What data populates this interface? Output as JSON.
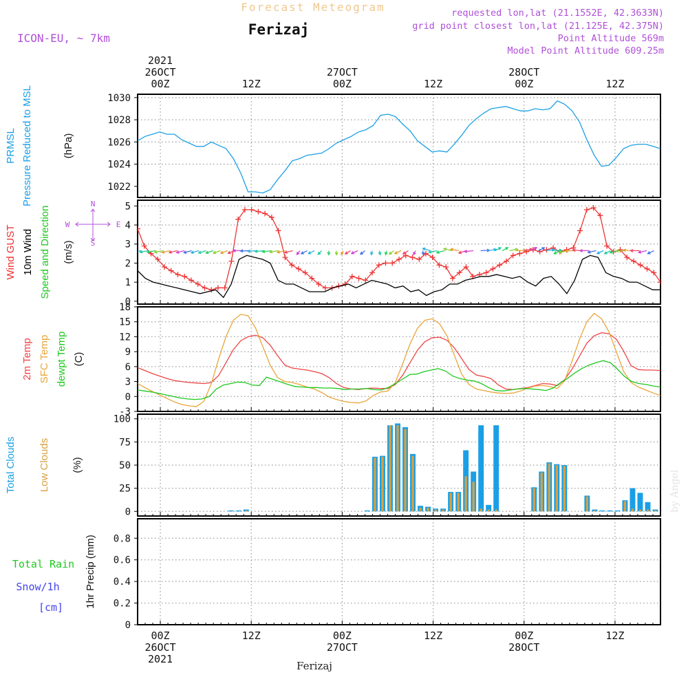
{
  "header": {
    "title": "Forecast Meteogram",
    "station": "Ferizaj",
    "model": "ICON-EU, ~ 7km",
    "requested": "requested lon,lat (21.1552E, 42.3633N)",
    "grid_point": "grid point closest lon,lat (21.125E, 42.375N)",
    "point_alt": "Point Altitude 569m",
    "model_alt": "Model Point Altitude 609.25m",
    "footer_station": "Ferizaj",
    "watermark": "by Angel"
  },
  "colors": {
    "pressure": "#1a9fe6",
    "gust": "#ee3333",
    "wind": "#000000",
    "temp2m": "#ee4444",
    "sfc": "#e8a53a",
    "dew": "#1ec81e",
    "total_clouds": "#1a9fe6",
    "low_clouds": "#d8a040",
    "rain": "#1ec81e",
    "snow": "#4444ee",
    "purple": "#b050d8"
  },
  "chart_data": {
    "type": "line",
    "x_axis": {
      "unit": "hours from 2021-10-25 21Z",
      "range": [
        0,
        69
      ],
      "top_ticks": [
        {
          "x": 3,
          "labels": [
            "2021",
            "26OCT",
            "00Z"
          ]
        },
        {
          "x": 15,
          "labels": [
            "12Z"
          ]
        },
        {
          "x": 27,
          "labels": [
            "27OCT",
            "00Z"
          ]
        },
        {
          "x": 39,
          "labels": [
            "12Z"
          ]
        },
        {
          "x": 51,
          "labels": [
            "28OCT",
            "00Z"
          ]
        },
        {
          "x": 63,
          "labels": [
            "12Z"
          ]
        }
      ],
      "bottom_ticks": [
        {
          "x": 3,
          "labels": [
            "00Z",
            "26OCT",
            "2021"
          ]
        },
        {
          "x": 15,
          "labels": [
            "12Z"
          ]
        },
        {
          "x": 27,
          "labels": [
            "00Z",
            "27OCT"
          ]
        },
        {
          "x": 39,
          "labels": [
            "12Z"
          ]
        },
        {
          "x": 51,
          "labels": [
            "00Z",
            "28OCT"
          ]
        },
        {
          "x": 63,
          "labels": [
            "12Z"
          ]
        }
      ]
    },
    "panels": [
      {
        "id": "pressure",
        "ylabels": [
          {
            "text": "PRMSL",
            "color": "pressure"
          },
          {
            "text": "Pressure Reduced to MSL",
            "color": "pressure"
          }
        ],
        "unit": "(hPa)",
        "ylim": [
          1021,
          1030.3
        ],
        "yticks": [
          1022,
          1024,
          1026,
          1028,
          1030
        ],
        "series": [
          {
            "name": "PRMSL",
            "color": "pressure",
            "values": [
              1026.1,
              1026.5,
              1026.7,
              1026.9,
              1026.7,
              1026.7,
              1026.2,
              1025.9,
              1025.6,
              1025.6,
              1026.0,
              1025.7,
              1025.4,
              1024.5,
              1023.2,
              1021.5,
              1021.5,
              1021.4,
              1021.7,
              1022.6,
              1023.4,
              1024.3,
              1024.5,
              1024.8,
              1024.9,
              1025.0,
              1025.4,
              1025.9,
              1026.2,
              1026.5,
              1026.9,
              1027.1,
              1027.5,
              1028.4,
              1028.5,
              1028.3,
              1027.6,
              1027.0,
              1026.1,
              1025.6,
              1025.1,
              1025.2,
              1025.1,
              1025.8,
              1026.6,
              1027.5,
              1028.1,
              1028.6,
              1029.0,
              1029.1,
              1029.2,
              1029.0,
              1028.8,
              1028.8,
              1029.0,
              1028.9,
              1029.0,
              1029.7,
              1029.4,
              1028.8,
              1027.8,
              1026.2,
              1024.8,
              1023.8,
              1023.9,
              1024.6,
              1025.4,
              1025.7,
              1025.8,
              1025.8,
              1025.6,
              1025.4
            ]
          }
        ]
      },
      {
        "id": "wind",
        "ylabels": [
          {
            "text": "Wind GUST",
            "color": "gust"
          },
          {
            "text": "10m Wind",
            "color": "wind"
          },
          {
            "text": "Speed and Direction",
            "color": "dew"
          }
        ],
        "unit": "(m/s)",
        "ylim": [
          -0.15,
          5.3
        ],
        "yticks": [
          0,
          1,
          2,
          3,
          4,
          5
        ],
        "compass": {
          "n": "N",
          "s": "S",
          "e": "E",
          "w": "W"
        },
        "series": [
          {
            "name": "Wind GUST",
            "color": "gust",
            "marker": "plus",
            "values": [
              3.8,
              2.9,
              2.5,
              2.2,
              1.8,
              1.6,
              1.4,
              1.3,
              1.1,
              0.9,
              0.7,
              0.6,
              0.7,
              0.7,
              2.1,
              4.3,
              4.8,
              4.8,
              4.7,
              4.6,
              4.4,
              3.7,
              2.3,
              1.9,
              1.7,
              1.5,
              1.2,
              0.9,
              0.7,
              0.7,
              0.8,
              0.9,
              1.3,
              1.2,
              1.1,
              1.5,
              1.9,
              2.0,
              2.0,
              2.2,
              2.4,
              2.3,
              2.2,
              2.5,
              2.3,
              1.9,
              1.8,
              1.2,
              1.5,
              1.8,
              1.3,
              1.4,
              1.5,
              1.7,
              1.9,
              2.1,
              2.4,
              2.5,
              2.6,
              2.7,
              2.6,
              2.7,
              2.8,
              2.6,
              2.7,
              2.8,
              3.7,
              4.8,
              4.9,
              4.5,
              2.9,
              2.6,
              2.7,
              2.3,
              2.1,
              1.9,
              1.7,
              1.5,
              1.0
            ]
          },
          {
            "name": "10m Wind",
            "color": "wind",
            "values": [
              1.6,
              1.2,
              1.0,
              0.9,
              0.8,
              0.7,
              0.6,
              0.5,
              0.4,
              0.5,
              0.6,
              0.2,
              0.9,
              2.2,
              2.4,
              2.3,
              2.2,
              2.0,
              1.1,
              0.9,
              0.9,
              0.7,
              0.5,
              0.5,
              0.5,
              0.7,
              0.8,
              0.9,
              0.7,
              0.9,
              1.1,
              1.0,
              0.9,
              0.7,
              0.8,
              0.5,
              0.6,
              0.3,
              0.5,
              0.6,
              0.9,
              0.9,
              1.1,
              1.2,
              1.3,
              1.3,
              1.4,
              1.3,
              1.2,
              1.3,
              1.0,
              0.8,
              1.2,
              1.3,
              0.9,
              0.4,
              1.1,
              2.2,
              2.4,
              2.3,
              1.5,
              1.3,
              1.2,
              1.0,
              1.0,
              0.8,
              0.6,
              0.6
            ]
          }
        ]
      },
      {
        "id": "temp",
        "ylabels": [
          {
            "text": "2m Temp",
            "color": "temp2m"
          },
          {
            "text": "SFC Temp",
            "color": "sfc"
          },
          {
            "text": "dewpt Temp",
            "color": "dew"
          }
        ],
        "unit": "(C)",
        "ylim": [
          -3,
          18
        ],
        "yticks": [
          -3,
          0,
          3,
          6,
          9,
          12,
          15,
          18
        ],
        "series": [
          {
            "name": "2m Temp",
            "color": "temp2m",
            "values": [
              5.8,
              5.2,
              4.6,
              4.1,
              3.6,
              3.2,
              3.0,
              2.8,
              2.7,
              2.6,
              2.8,
              4.2,
              6.8,
              9.4,
              11.2,
              12.0,
              12.3,
              11.8,
              10.3,
              8.2,
              6.3,
              5.7,
              5.5,
              5.3,
              5.0,
              4.6,
              3.8,
              2.6,
              1.8,
              1.5,
              1.4,
              1.6,
              1.7,
              1.6,
              1.6,
              2.4,
              4.3,
              6.8,
              9.3,
              11.0,
              11.8,
              11.9,
              11.3,
              9.8,
              7.6,
              5.4,
              4.3,
              4.0,
              3.6,
              2.3,
              1.5,
              1.4,
              1.6,
              1.8,
              2.2,
              2.6,
              2.5,
              2.2,
              3.4,
              5.5,
              8.1,
              10.7,
              12.2,
              12.8,
              12.6,
              11.5,
              9.1,
              6.2,
              5.4,
              5.3,
              5.3,
              5.2
            ]
          },
          {
            "name": "SFC Temp",
            "color": "sfc",
            "values": [
              2.6,
              1.8,
              1.0,
              0.3,
              -0.4,
              -1.1,
              -1.6,
              -1.9,
              -2.0,
              -1.0,
              2.5,
              7.5,
              12.0,
              15.3,
              16.5,
              16.2,
              13.8,
              10.0,
              6.3,
              3.8,
              3.0,
              2.8,
              2.4,
              1.9,
              1.5,
              0.8,
              -0.1,
              -0.6,
              -1.0,
              -1.2,
              -1.3,
              -0.9,
              0.2,
              0.9,
              1.1,
              2.8,
              6.6,
              10.6,
              13.7,
              15.3,
              15.6,
              14.6,
              12.2,
              8.3,
              4.5,
              2.4,
              1.5,
              1.2,
              0.9,
              0.7,
              0.6,
              0.7,
              1.1,
              1.7,
              2.1,
              2.2,
              2.0,
              1.6,
              3.2,
              7.1,
              11.5,
              15.0,
              16.7,
              15.6,
              13.0,
              9.0,
              5.0,
              2.8,
              1.9,
              1.3,
              0.7,
              0.2
            ]
          },
          {
            "name": "dewpt Temp",
            "color": "dew",
            "values": [
              1.3,
              1.1,
              0.9,
              0.6,
              0.3,
              0.0,
              -0.3,
              -0.5,
              -0.6,
              -0.5,
              0.0,
              1.5,
              2.3,
              2.6,
              2.9,
              2.8,
              2.3,
              2.2,
              3.9,
              3.4,
              2.9,
              2.4,
              2.0,
              1.9,
              1.8,
              1.8,
              1.7,
              1.7,
              1.6,
              1.4,
              1.5,
              1.5,
              1.6,
              1.4,
              1.3,
              1.8,
              2.6,
              3.5,
              4.4,
              4.5,
              5.0,
              5.3,
              5.6,
              5.1,
              4.1,
              3.6,
              3.3,
              3.1,
              2.6,
              1.8,
              1.2,
              1.1,
              1.3,
              1.5,
              1.6,
              1.5,
              1.4,
              1.2,
              1.7,
              2.7,
              3.6,
              4.7,
              5.6,
              6.3,
              6.8,
              7.2,
              6.8,
              5.5,
              4.0,
              3.0,
              2.6,
              2.4,
              2.1,
              1.9
            ]
          }
        ]
      },
      {
        "id": "clouds",
        "type": "bar",
        "ylabels": [
          {
            "text": "Total Clouds",
            "color": "total_clouds"
          },
          {
            "text": "Low Clouds",
            "color": "low_clouds"
          }
        ],
        "unit": "(%)",
        "ylim": [
          -5,
          105
        ],
        "yticks": [
          0,
          25,
          50,
          75,
          100
        ],
        "series": [
          {
            "name": "Total Clouds",
            "color": "total_clouds",
            "values": [
              0,
              0,
              0,
              0,
              0,
              0,
              0,
              0,
              0,
              0,
              0,
              0,
              1,
              1,
              2,
              0,
              0,
              0,
              0,
              0,
              0,
              0,
              0,
              0,
              0,
              0,
              0,
              0,
              0,
              0,
              1,
              59,
              60,
              93,
              95,
              91,
              62,
              6,
              5,
              3,
              3,
              21,
              21,
              66,
              43,
              93,
              7,
              93,
              0,
              0,
              0,
              0,
              26,
              43,
              53,
              51,
              50,
              0,
              0,
              17,
              2,
              1,
              1,
              1,
              12,
              25,
              20,
              10,
              2,
              1,
              1,
              1,
              1,
              1,
              1,
              1
            ]
          },
          {
            "name": "Low Clouds",
            "color": "low_clouds",
            "values": [
              0,
              0,
              0,
              0,
              0,
              0,
              0,
              0,
              0,
              0,
              0,
              0,
              0,
              0,
              1,
              0,
              0,
              0,
              0,
              0,
              0,
              0,
              0,
              0,
              0,
              0,
              0,
              0,
              0,
              0,
              0,
              58,
              59,
              93,
              93,
              89,
              60,
              4,
              4,
              2,
              2,
              20,
              20,
              38,
              32,
              3,
              2,
              2,
              0,
              0,
              0,
              0,
              25,
              42,
              52,
              50,
              49,
              0,
              0,
              16,
              1,
              0,
              0,
              0,
              11,
              3,
              2,
              2,
              1,
              0,
              0,
              0,
              0,
              0,
              0,
              0
            ]
          }
        ]
      },
      {
        "id": "precip",
        "ylabels": [
          {
            "text": "Total  Rain",
            "color": "rain"
          },
          {
            "text": "Snow/1h",
            "color": "snow"
          },
          {
            "text": "[cm]",
            "color": "snow"
          }
        ],
        "unit": "1hr Precip (mm)",
        "ylim": [
          0,
          0.98
        ],
        "yticks": [
          0,
          0.2,
          0.4,
          0.6,
          0.8
        ],
        "ytick_labels": [
          "0",
          "0.2",
          "0.4",
          "0.6",
          "0.8"
        ],
        "series": [
          {
            "name": "Total Rain",
            "color": "rain",
            "values": []
          },
          {
            "name": "Snow/1h",
            "color": "snow",
            "values": []
          }
        ]
      }
    ]
  }
}
